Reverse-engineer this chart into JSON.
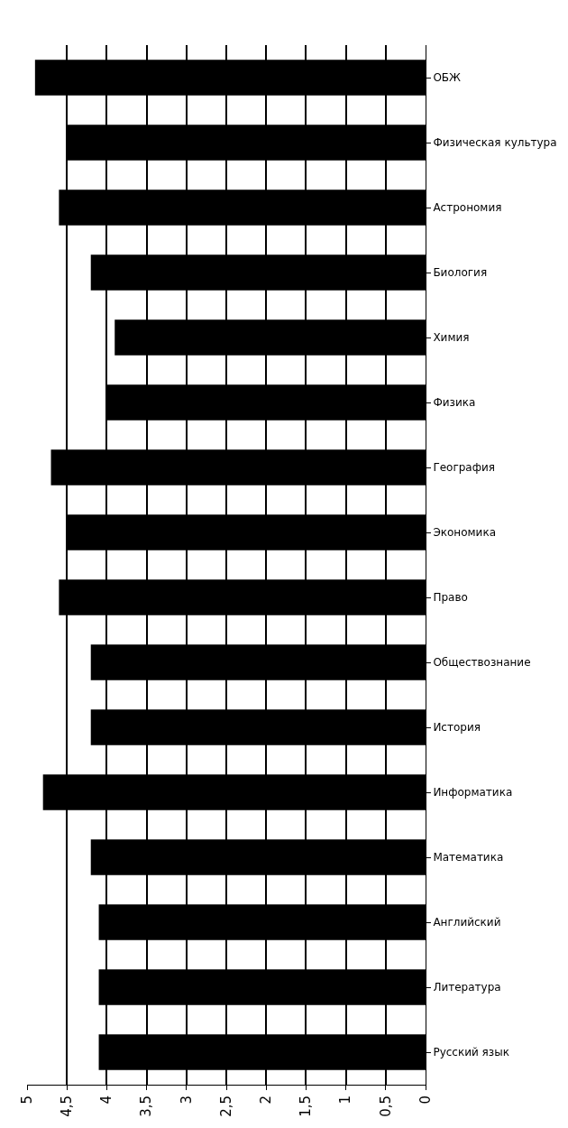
{
  "chart_data": {
    "type": "bar",
    "orientation": "horizontal",
    "categories": [
      "ОБЖ",
      "Физическая культура",
      "Астрономия",
      "Биология",
      "Химия",
      "Физика",
      "География",
      "Экономика",
      "Право",
      "Обществознание",
      "История",
      "Информатика",
      "Математика",
      "Английский",
      "Литература",
      "Русский язык"
    ],
    "values": [
      4.9,
      4.5,
      4.6,
      4.2,
      3.9,
      4.0,
      4.7,
      4.5,
      4.6,
      4.2,
      4.2,
      4.8,
      4.2,
      4.1,
      4.1,
      4.1
    ],
    "color": "#000000",
    "xlim": [
      5,
      0
    ],
    "xticks": [
      {
        "value": 5,
        "label": "5"
      },
      {
        "value": 4.5,
        "label": "4,5"
      },
      {
        "value": 4,
        "label": "4"
      },
      {
        "value": 3.5,
        "label": "3,5"
      },
      {
        "value": 3,
        "label": "3"
      },
      {
        "value": 2.5,
        "label": "2,5"
      },
      {
        "value": 2,
        "label": "2"
      },
      {
        "value": 1.5,
        "label": "1,5"
      },
      {
        "value": 1,
        "label": "1"
      },
      {
        "value": 0.5,
        "label": "0,5"
      },
      {
        "value": 0,
        "label": "0"
      }
    ],
    "grid": "x"
  }
}
